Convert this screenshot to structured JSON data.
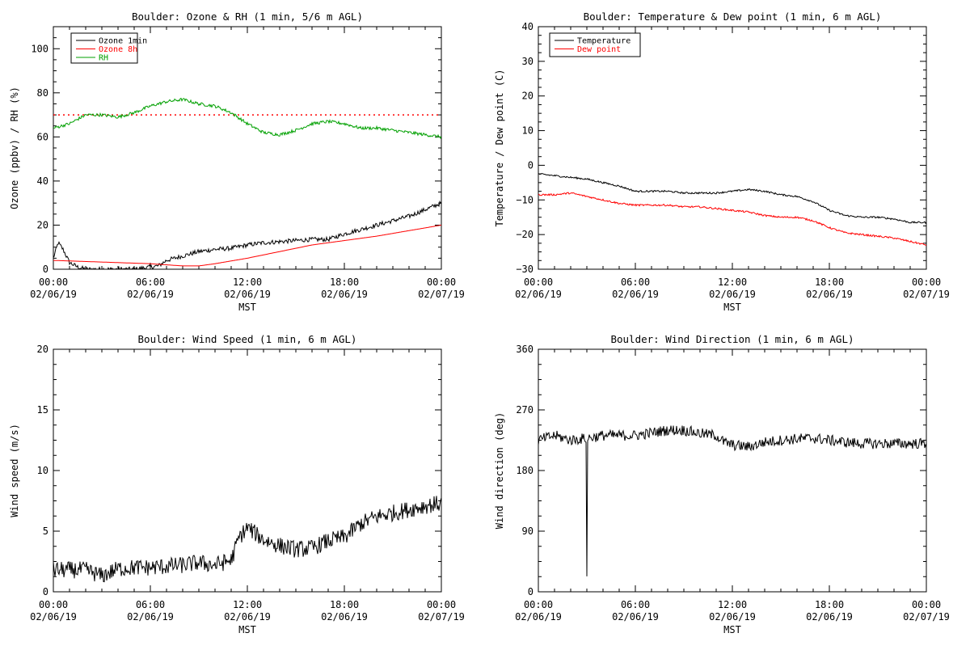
{
  "chart_data": [
    {
      "id": "ozone-rh",
      "type": "line",
      "title": "Boulder: Ozone & RH (1 min, 5/6 m AGL)",
      "xlabel": "MST",
      "ylabel": "Ozone (ppbv) / RH (%)",
      "xlim": [
        0,
        24
      ],
      "ylim": [
        0,
        110
      ],
      "x_ticks": [
        {
          "time": "00:00",
          "date": "02/06/19"
        },
        {
          "time": "06:00",
          "date": "02/06/19"
        },
        {
          "time": "12:00",
          "date": "02/06/19"
        },
        {
          "time": "18:00",
          "date": "02/06/19"
        },
        {
          "time": "00:00",
          "date": "02/07/19"
        }
      ],
      "y_ticks": [
        "0",
        "20",
        "40",
        "60",
        "80",
        "100"
      ],
      "y_tick_values": [
        0,
        20,
        40,
        60,
        80,
        100
      ],
      "legend_position": "top-left",
      "reference_line": {
        "y": 70,
        "color": "#ff0000",
        "style": "dotted"
      },
      "series": [
        {
          "name": "Ozone 1min",
          "color": "#000000",
          "noise": 1.0,
          "x": [
            0,
            0.3,
            0.6,
            1.0,
            1.5,
            2.0,
            3.0,
            4.0,
            5.0,
            5.5,
            6.0,
            6.5,
            7.0,
            8.0,
            9.0,
            10.0,
            11.0,
            12.0,
            13.0,
            14.0,
            15.0,
            16.0,
            17.0,
            18.0,
            19.0,
            20.0,
            21.0,
            22.0,
            23.0,
            24.0
          ],
          "y": [
            5,
            12,
            9,
            3,
            1,
            0,
            0,
            0,
            0,
            0.5,
            1,
            1.5,
            4,
            6,
            8,
            9,
            9.5,
            11,
            12,
            12.5,
            13,
            13.5,
            13.5,
            16,
            18,
            20,
            22,
            24,
            27,
            30
          ]
        },
        {
          "name": "Ozone 8h",
          "color": "#ff0000",
          "noise": 0,
          "x": [
            0,
            2,
            4,
            6,
            7,
            8,
            9,
            10,
            12,
            14,
            16,
            18,
            20,
            22,
            24
          ],
          "y": [
            4,
            3.5,
            3,
            2.5,
            2,
            1.5,
            1.5,
            2.5,
            5,
            8,
            11,
            13,
            15,
            17.5,
            20
          ]
        },
        {
          "name": "RH",
          "color": "#00a000",
          "noise": 0.7,
          "x": [
            0,
            1,
            2,
            3,
            4,
            5,
            6,
            7,
            8,
            9,
            10,
            11,
            12,
            13,
            14,
            15,
            16,
            17,
            18,
            19,
            20,
            21,
            22,
            23,
            24
          ],
          "y": [
            64,
            66,
            70,
            70,
            69,
            71,
            74,
            76,
            77,
            75,
            74,
            71,
            66,
            62,
            61,
            63,
            66,
            67,
            66,
            64,
            64,
            63,
            62,
            61,
            60
          ]
        }
      ]
    },
    {
      "id": "temp-dewpoint",
      "type": "line",
      "title": "Boulder: Temperature & Dew point (1 min, 6 m AGL)",
      "xlabel": "MST",
      "ylabel": "Temperature / Dew point (C)",
      "xlim": [
        0,
        24
      ],
      "ylim": [
        -30,
        40
      ],
      "x_ticks": [
        {
          "time": "00:00",
          "date": "02/06/19"
        },
        {
          "time": "06:00",
          "date": "02/06/19"
        },
        {
          "time": "12:00",
          "date": "02/06/19"
        },
        {
          "time": "18:00",
          "date": "02/06/19"
        },
        {
          "time": "00:00",
          "date": "02/07/19"
        }
      ],
      "y_ticks": [
        "−30",
        "−20",
        "−10",
        "0",
        "10",
        "20",
        "30",
        "40"
      ],
      "y_tick_values": [
        -30,
        -20,
        -10,
        0,
        10,
        20,
        30,
        40
      ],
      "legend_position": "top-left",
      "series": [
        {
          "name": "Temperature",
          "color": "#000000",
          "noise": 0.25,
          "x": [
            0,
            1,
            2,
            3,
            4,
            5,
            6,
            7,
            8,
            9,
            10,
            11,
            12,
            13,
            14,
            15,
            16,
            17,
            18,
            19,
            20,
            21,
            22,
            23,
            24
          ],
          "y": [
            -2.5,
            -3,
            -3.5,
            -4,
            -5,
            -6,
            -7.5,
            -7.5,
            -7.5,
            -8,
            -8,
            -8,
            -7.5,
            -7,
            -7.5,
            -8.5,
            -9,
            -10.5,
            -13,
            -14.5,
            -15,
            -15,
            -15.5,
            -16.5,
            -16.5
          ]
        },
        {
          "name": "Dew point",
          "color": "#ff0000",
          "noise": 0.25,
          "x": [
            0,
            1,
            2,
            3,
            4,
            5,
            6,
            7,
            8,
            9,
            10,
            11,
            12,
            13,
            14,
            15,
            16,
            17,
            18,
            19,
            20,
            21,
            22,
            23,
            24
          ],
          "y": [
            -8.5,
            -8.5,
            -8,
            -9,
            -10,
            -11,
            -11.5,
            -11.5,
            -11.5,
            -12,
            -12,
            -12.5,
            -13,
            -13.5,
            -14.5,
            -15,
            -15,
            -16,
            -18,
            -19.5,
            -20,
            -20.5,
            -21,
            -22,
            -23
          ]
        }
      ]
    },
    {
      "id": "wind-speed",
      "type": "line",
      "title": "Boulder: Wind Speed (1 min, 6 m AGL)",
      "xlabel": "MST",
      "ylabel": "Wind speed (m/s)",
      "xlim": [
        0,
        24
      ],
      "ylim": [
        0,
        20
      ],
      "x_ticks": [
        {
          "time": "00:00",
          "date": "02/06/19"
        },
        {
          "time": "06:00",
          "date": "02/06/19"
        },
        {
          "time": "12:00",
          "date": "02/06/19"
        },
        {
          "time": "18:00",
          "date": "02/06/19"
        },
        {
          "time": "00:00",
          "date": "02/07/19"
        }
      ],
      "y_ticks": [
        "0",
        "5",
        "10",
        "15",
        "20"
      ],
      "y_tick_values": [
        0,
        5,
        10,
        15,
        20
      ],
      "series": [
        {
          "name": "",
          "color": "#000000",
          "noise": 0.7,
          "x": [
            0,
            1,
            2,
            3,
            4,
            5,
            6,
            7,
            8,
            9,
            10,
            11,
            11.5,
            12,
            13,
            14,
            15,
            16,
            17,
            18,
            19,
            20,
            21,
            22,
            23,
            24
          ],
          "y": [
            1.8,
            1.8,
            1.8,
            1.3,
            1.9,
            2.0,
            2.0,
            2.1,
            2.2,
            2.4,
            2.2,
            2.6,
            4.5,
            5.3,
            4.3,
            3.8,
            3.5,
            3.6,
            4.2,
            4.5,
            5.6,
            6.2,
            6.5,
            6.8,
            7.1,
            7.3
          ]
        }
      ]
    },
    {
      "id": "wind-direction",
      "type": "line",
      "title": "Boulder: Wind Direction (1 min, 6 m AGL)",
      "xlabel": "MST",
      "ylabel": "Wind direction (deg)",
      "xlim": [
        0,
        24
      ],
      "ylim": [
        0,
        360
      ],
      "x_ticks": [
        {
          "time": "00:00",
          "date": "02/06/19"
        },
        {
          "time": "06:00",
          "date": "02/06/19"
        },
        {
          "time": "12:00",
          "date": "02/06/19"
        },
        {
          "time": "18:00",
          "date": "02/06/19"
        },
        {
          "time": "00:00",
          "date": "02/07/19"
        }
      ],
      "y_ticks": [
        "0",
        "90",
        "180",
        "270",
        "360"
      ],
      "y_tick_values": [
        0,
        90,
        180,
        270,
        360
      ],
      "series": [
        {
          "name": "",
          "color": "#000000",
          "noise": 8,
          "x": [
            0,
            1,
            2,
            2.99,
            3.0,
            3.01,
            4,
            5,
            6,
            7,
            8,
            9,
            10,
            11,
            11.5,
            12,
            13,
            14,
            15,
            16,
            17,
            18,
            19,
            20,
            21,
            22,
            23,
            24
          ],
          "y": [
            225,
            232,
            225,
            228,
            20,
            228,
            232,
            232,
            232,
            236,
            240,
            240,
            235,
            232,
            222,
            218,
            215,
            222,
            225,
            227,
            228,
            225,
            222,
            220,
            220,
            220,
            220,
            220
          ]
        }
      ]
    }
  ]
}
